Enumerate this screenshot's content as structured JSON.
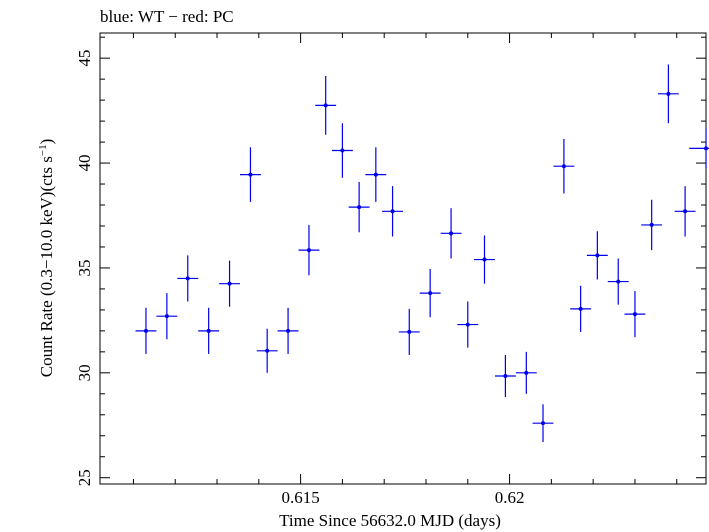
{
  "chart_data": {
    "type": "scatter",
    "title": "blue: WT − red: PC",
    "xlabel": "Time Since 56632.0 MJD (days)",
    "ylabel_main": "Count Rate (0.3−10.0 keV)(cts s",
    "ylabel_sup": "−1",
    "ylabel_close": ")",
    "xlim": [
      0.6102,
      0.6247
    ],
    "ylim": [
      24.7,
      46.2
    ],
    "xticks": [
      {
        "value": 0.615,
        "label": "0.615"
      },
      {
        "value": 0.62,
        "label": "0.62"
      }
    ],
    "yticks": [
      {
        "value": 25,
        "label": "25"
      },
      {
        "value": 30,
        "label": "30"
      },
      {
        "value": 35,
        "label": "35"
      },
      {
        "value": 40,
        "label": "40"
      },
      {
        "value": 45,
        "label": "45"
      }
    ],
    "grid": false,
    "series": [
      {
        "color": "#0000ee",
        "points": [
          {
            "x": 0.6113,
            "y": 32.0,
            "xerr": 0.00025,
            "yerr": 1.1
          },
          {
            "x": 0.6118,
            "y": 32.7,
            "xerr": 0.00025,
            "yerr": 1.1
          },
          {
            "x": 0.6123,
            "y": 34.5,
            "xerr": 0.00025,
            "yerr": 1.1
          },
          {
            "x": 0.6128,
            "y": 32.0,
            "xerr": 0.00025,
            "yerr": 1.1
          },
          {
            "x": 0.6133,
            "y": 34.25,
            "xerr": 0.00025,
            "yerr": 1.1
          },
          {
            "x": 0.6138,
            "y": 39.45,
            "xerr": 0.00025,
            "yerr": 1.3
          },
          {
            "x": 0.6142,
            "y": 31.05,
            "xerr": 0.00025,
            "yerr": 1.05
          },
          {
            "x": 0.6147,
            "y": 32.0,
            "xerr": 0.00025,
            "yerr": 1.1
          },
          {
            "x": 0.6152,
            "y": 35.85,
            "xerr": 0.00025,
            "yerr": 1.2
          },
          {
            "x": 0.6156,
            "y": 42.75,
            "xerr": 0.00025,
            "yerr": 1.4
          },
          {
            "x": 0.616,
            "y": 40.6,
            "xerr": 0.00025,
            "yerr": 1.3
          },
          {
            "x": 0.6164,
            "y": 37.9,
            "xerr": 0.00025,
            "yerr": 1.2
          },
          {
            "x": 0.6168,
            "y": 39.45,
            "xerr": 0.00025,
            "yerr": 1.3
          },
          {
            "x": 0.6172,
            "y": 37.7,
            "xerr": 0.00025,
            "yerr": 1.2
          },
          {
            "x": 0.6176,
            "y": 31.95,
            "xerr": 0.00025,
            "yerr": 1.1
          },
          {
            "x": 0.6181,
            "y": 33.8,
            "xerr": 0.00025,
            "yerr": 1.15
          },
          {
            "x": 0.6186,
            "y": 36.65,
            "xerr": 0.00025,
            "yerr": 1.2
          },
          {
            "x": 0.619,
            "y": 32.3,
            "xerr": 0.00025,
            "yerr": 1.1
          },
          {
            "x": 0.6194,
            "y": 35.4,
            "xerr": 0.00025,
            "yerr": 1.15
          },
          {
            "x": 0.6199,
            "y": 29.85,
            "xerr": 0.00025,
            "yerr": 1.0
          },
          {
            "x": 0.6204,
            "y": 30.0,
            "xerr": 0.00025,
            "yerr": 1.0
          },
          {
            "x": 0.6208,
            "y": 27.6,
            "xerr": 0.00025,
            "yerr": 0.9
          },
          {
            "x": 0.6213,
            "y": 39.85,
            "xerr": 0.00025,
            "yerr": 1.3
          },
          {
            "x": 0.6217,
            "y": 33.05,
            "xerr": 0.00025,
            "yerr": 1.1
          },
          {
            "x": 0.6221,
            "y": 35.6,
            "xerr": 0.00025,
            "yerr": 1.15
          },
          {
            "x": 0.6226,
            "y": 34.35,
            "xerr": 0.00025,
            "yerr": 1.1
          },
          {
            "x": 0.623,
            "y": 32.8,
            "xerr": 0.00025,
            "yerr": 1.1
          },
          {
            "x": 0.6234,
            "y": 37.05,
            "xerr": 0.00025,
            "yerr": 1.2
          },
          {
            "x": 0.6238,
            "y": 43.3,
            "xerr": 0.00025,
            "yerr": 1.4
          },
          {
            "x": 0.6242,
            "y": 37.7,
            "xerr": 0.00025,
            "yerr": 1.2
          },
          {
            "x": 0.6247,
            "y": 40.7,
            "xerr": 0.0004,
            "yerr": 0.95
          }
        ]
      }
    ]
  }
}
